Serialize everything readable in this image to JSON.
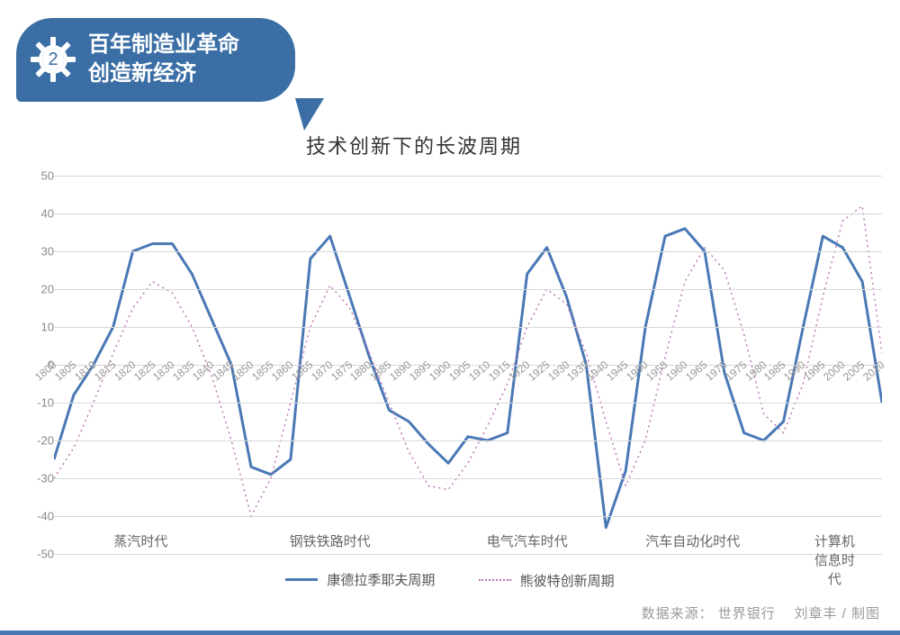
{
  "header": {
    "number": "2",
    "title": "百年制造业革命\n创造新经济"
  },
  "chart": {
    "type": "line",
    "title": "技术创新下的长波周期",
    "background_color": "#ffffff",
    "grid_color": "#d8d8d8",
    "ylim": [
      -50,
      50
    ],
    "ytick_step": 10,
    "yticks": [
      50,
      40,
      30,
      20,
      10,
      0,
      -10,
      -20,
      -30,
      -40,
      -50
    ],
    "x_years": [
      1800,
      1805,
      1810,
      1815,
      1820,
      1825,
      1830,
      1835,
      1840,
      1845,
      1850,
      1855,
      1860,
      1865,
      1870,
      1875,
      1880,
      1885,
      1890,
      1895,
      1900,
      1905,
      1910,
      1915,
      1920,
      1925,
      1930,
      1935,
      1940,
      1945,
      1950,
      1955,
      1960,
      1965,
      1970,
      1975,
      1980,
      1985,
      1990,
      1995,
      2000,
      2005,
      2010
    ],
    "series": [
      {
        "name": "康德拉季耶夫周期",
        "color": "#4a78b5",
        "stroke_width": 3,
        "style": "solid",
        "values": [
          -25,
          -8,
          0,
          10,
          30,
          32,
          32,
          24,
          12,
          0,
          -27,
          -29,
          -25,
          28,
          34,
          18,
          2,
          -12,
          -15,
          -21,
          -26,
          -19,
          -20,
          -18,
          24,
          31,
          18,
          0,
          -43,
          -28,
          10,
          34,
          36,
          30,
          -2,
          -18,
          -20,
          -15,
          10,
          34,
          31,
          22,
          -10
        ]
      },
      {
        "name": "熊彼特创新周期",
        "color": "#b96fb5",
        "stroke_width": 1.4,
        "style": "dotted",
        "values": [
          -30,
          -22,
          -10,
          3,
          15,
          22,
          19,
          10,
          -3,
          -20,
          -40,
          -30,
          -10,
          10,
          21,
          15,
          3,
          -10,
          -23,
          -32,
          -33,
          -26,
          -16,
          -5,
          10,
          20,
          16,
          3,
          -15,
          -32,
          -20,
          2,
          22,
          31,
          25,
          8,
          -13,
          -18,
          -5,
          18,
          38,
          42,
          3
        ]
      }
    ],
    "eras": [
      {
        "label": "蒸汽时代",
        "center_year": 1822
      },
      {
        "label": "钢铁铁路时代",
        "center_year": 1870
      },
      {
        "label": "电气汽车时代",
        "center_year": 1920
      },
      {
        "label": "汽车自动化时代",
        "center_year": 1962
      },
      {
        "label": "计算机信息时代",
        "center_year": 1998
      }
    ],
    "era_y": -44,
    "title_fontsize": 22,
    "label_fontsize": 13
  },
  "legend": {
    "items": [
      "康德拉季耶夫周期",
      "熊彼特创新周期"
    ]
  },
  "source": {
    "prefix": "数据来源：",
    "org": "世界银行",
    "credit": "刘章丰 / 制图"
  },
  "colors": {
    "badge": "#3a6ea5",
    "accent": "#4a78b5"
  }
}
